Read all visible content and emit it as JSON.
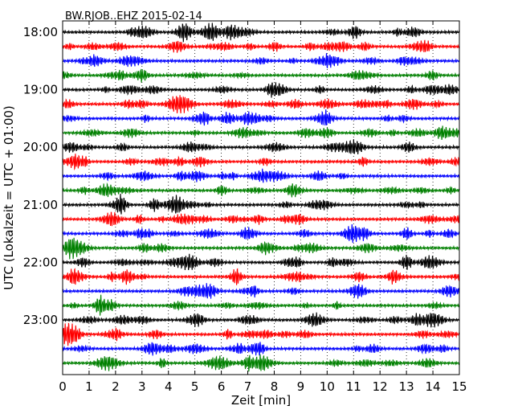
{
  "chart_data": {
    "type": "line",
    "title": "BW.RJOB..EHZ 2015-02-14",
    "xlabel": "Zeit  [min]",
    "ylabel": "UTC (Lokalzeit = UTC + 01:00)",
    "xlim": [
      0,
      15
    ],
    "x_ticks": [
      "0",
      "1",
      "2",
      "3",
      "4",
      "5",
      "6",
      "7",
      "8",
      "9",
      "10",
      "11",
      "12",
      "13",
      "14",
      "15"
    ],
    "y_tick_labels": [
      "18:00",
      "19:00",
      "20:00",
      "21:00",
      "22:00",
      "23:00"
    ],
    "y_tick_rows": [
      0,
      4,
      8,
      12,
      16,
      20
    ],
    "rows": 24,
    "row_minutes": 15,
    "trace_colors": [
      "#000000",
      "#ff0000",
      "#0000ff",
      "#008000"
    ],
    "grid": "vertical dotted at each minute"
  }
}
